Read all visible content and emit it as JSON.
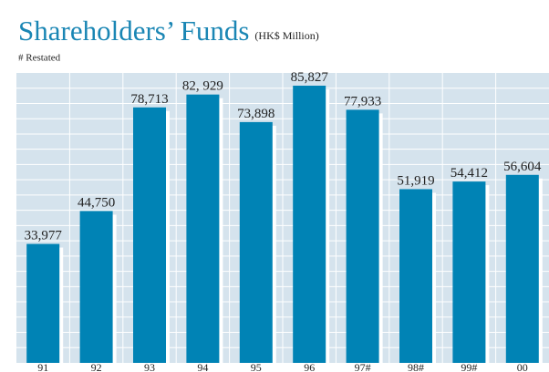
{
  "chart_data": {
    "type": "bar",
    "title": "Shareholders’ Funds",
    "subtitle": "(HK$ Million)",
    "annotation": "# Restated",
    "categories": [
      "91",
      "92",
      "93",
      "94",
      "95",
      "96",
      "97#",
      "98#",
      "99#",
      "00"
    ],
    "values": [
      33977,
      44750,
      78713,
      82929,
      73898,
      85827,
      77933,
      51919,
      54412,
      56604
    ],
    "value_labels": [
      "33,977",
      "44,750",
      "78,713",
      "82, 929",
      "73,898",
      "85,827",
      "77,933",
      "51,919",
      "54,412",
      "56,604"
    ],
    "color": "#0083b5",
    "ylim": [
      -5000,
      90000
    ],
    "grid": true
  }
}
